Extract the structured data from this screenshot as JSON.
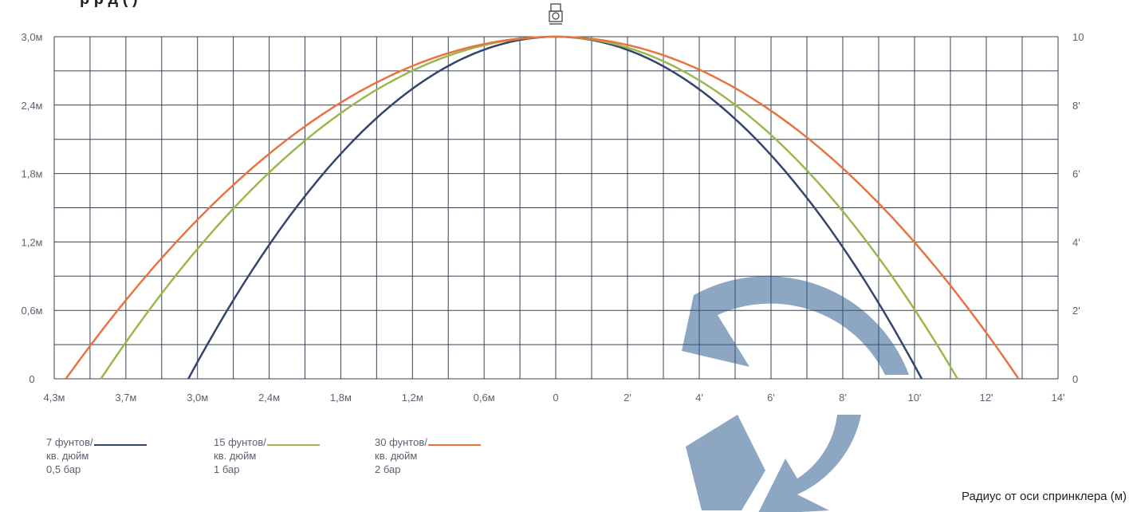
{
  "chart_data": {
    "type": "line",
    "title_fragment": "р    р д    (  )",
    "x_axis": {
      "left_ticks": [
        "4,3м",
        "3,7м",
        "3,0м",
        "2,4м",
        "1,8м",
        "1,2м",
        "0,6м",
        "0"
      ],
      "right_ticks": [
        "2'",
        "4'",
        "6'",
        "8'",
        "10'",
        "12'",
        "14'"
      ],
      "left_range_m": [
        4.3,
        0
      ],
      "right_range_ft": [
        0,
        14
      ]
    },
    "y_axis": {
      "left_ticks": [
        "3,0м",
        "2,4м",
        "1,8м",
        "1,2м",
        "0,6м",
        "0"
      ],
      "right_ticks": [
        "10",
        "8'",
        "6'",
        "4'",
        "2'",
        "0"
      ],
      "range_m": [
        0,
        3.0
      ],
      "range_ft": [
        0,
        10
      ]
    },
    "grid": true,
    "series": [
      {
        "name_lines": [
          "7 фунтов/",
          "кв. дюйм",
          "0,5 бар"
        ],
        "color": "#33456b",
        "left_radius_m": 3.15,
        "right_radius_ft": 10.2,
        "peak_m": 3.0
      },
      {
        "name_lines": [
          "15 фунтов/",
          "кв. дюйм",
          "1 бар"
        ],
        "color": "#9bb84a",
        "left_radius_m": 3.9,
        "right_radius_ft": 11.2,
        "peak_m": 3.0
      },
      {
        "name_lines": [
          "30 фунтов/",
          "кв. дюйм",
          "2 бар"
        ],
        "color": "#e8733f",
        "left_radius_m": 4.2,
        "right_radius_ft": 12.9,
        "peak_m": 3.0
      }
    ],
    "xlabel": "Радиус от оси спринклера (м)"
  }
}
